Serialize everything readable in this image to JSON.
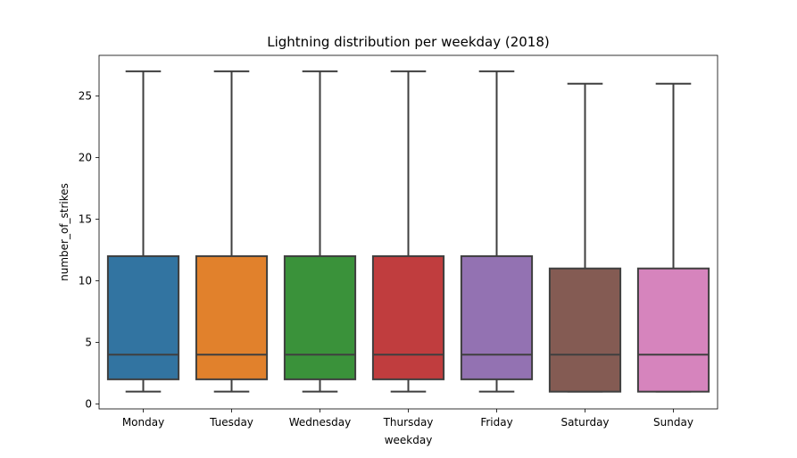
{
  "chart_data": {
    "type": "box",
    "title": "Lightning distribution per weekday (2018)",
    "xlabel": "weekday",
    "ylabel": "number_of_strikes",
    "ylim": [
      -0.4,
      28.3
    ],
    "yticks": [
      0,
      5,
      10,
      15,
      20,
      25
    ],
    "grid": false,
    "categories": [
      "Monday",
      "Tuesday",
      "Wednesday",
      "Thursday",
      "Friday",
      "Saturday",
      "Sunday"
    ],
    "boxes": [
      {
        "category": "Monday",
        "whisker_low": 1,
        "q1": 2,
        "median": 4,
        "q3": 12,
        "whisker_high": 27,
        "color": "#3274a1"
      },
      {
        "category": "Tuesday",
        "whisker_low": 1,
        "q1": 2,
        "median": 4,
        "q3": 12,
        "whisker_high": 27,
        "color": "#e1812c"
      },
      {
        "category": "Wednesday",
        "whisker_low": 1,
        "q1": 2,
        "median": 4,
        "q3": 12,
        "whisker_high": 27,
        "color": "#3a923a"
      },
      {
        "category": "Thursday",
        "whisker_low": 1,
        "q1": 2,
        "median": 4,
        "q3": 12,
        "whisker_high": 27,
        "color": "#c03d3e"
      },
      {
        "category": "Friday",
        "whisker_low": 1,
        "q1": 2,
        "median": 4,
        "q3": 12,
        "whisker_high": 27,
        "color": "#9372b2"
      },
      {
        "category": "Saturday",
        "whisker_low": 1,
        "q1": 1,
        "median": 4,
        "q3": 11,
        "whisker_high": 26,
        "color": "#845b53"
      },
      {
        "category": "Sunday",
        "whisker_low": 1,
        "q1": 1,
        "median": 4,
        "q3": 11,
        "whisker_high": 26,
        "color": "#d684bd"
      }
    ],
    "line_color": "#3f3f3f"
  }
}
